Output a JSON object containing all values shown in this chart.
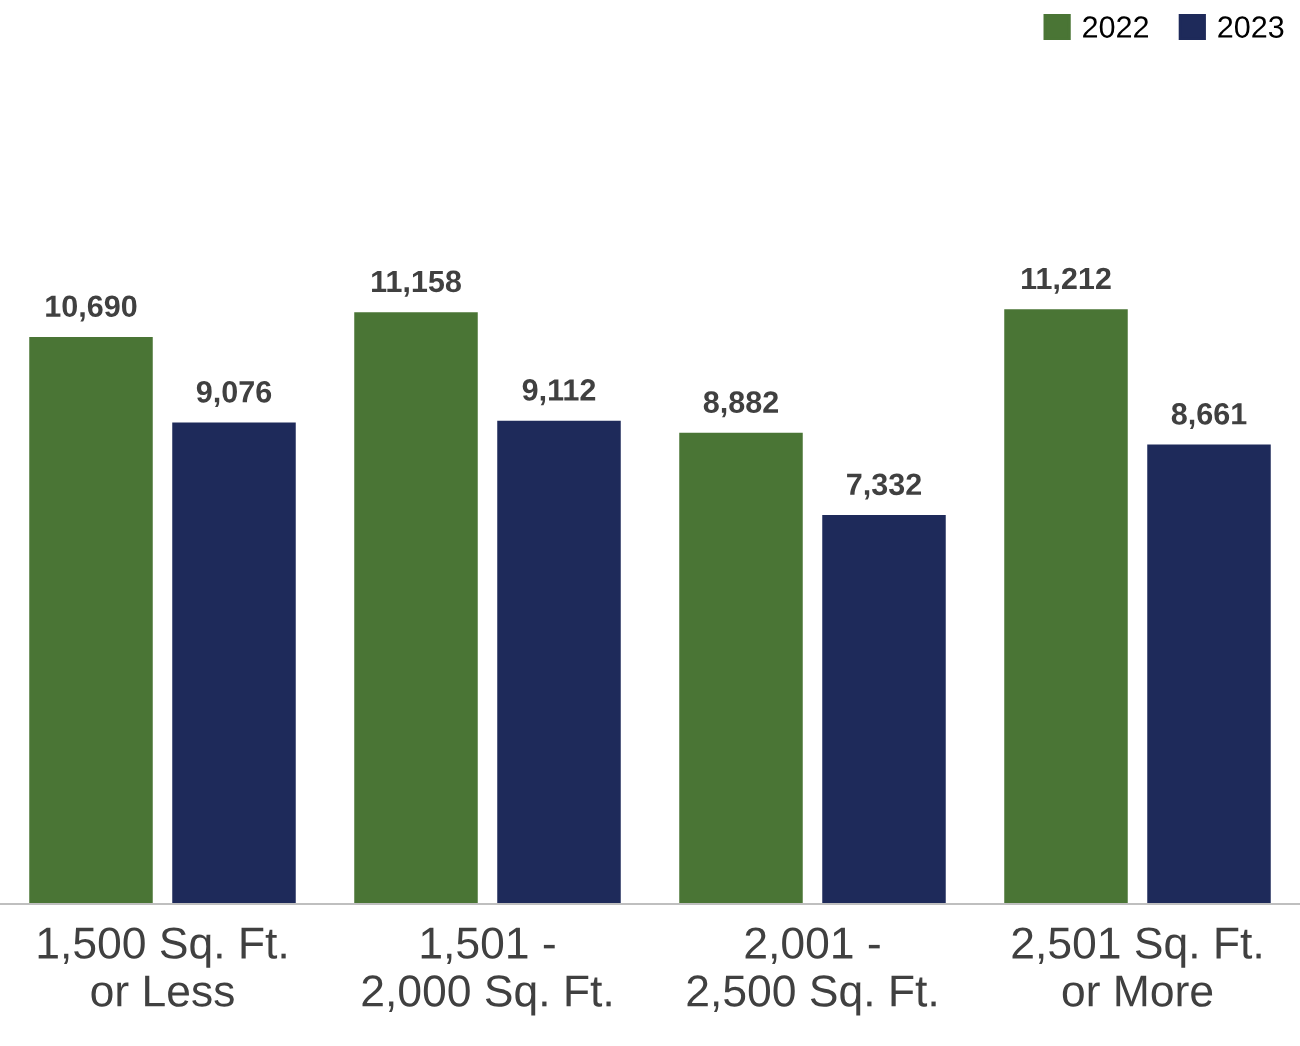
{
  "chart_data": {
    "type": "bar",
    "categories": [
      "1,500 Sq. Ft.\nor Less",
      "1,501 -\n2,000 Sq. Ft.",
      "2,001 -\n2,500 Sq. Ft.",
      "2,501 Sq. Ft.\nor More"
    ],
    "series": [
      {
        "name": "2022",
        "color": "#4a7535",
        "values": [
          10690,
          11158,
          8882,
          11212
        ],
        "value_labels": [
          "10,690",
          "11,158",
          "8,882",
          "11,212"
        ]
      },
      {
        "name": "2023",
        "color": "#1e2a5a",
        "values": [
          9076,
          9112,
          7332,
          8661
        ],
        "value_labels": [
          "9,076",
          "9,112",
          "7,332",
          "8,661"
        ]
      }
    ],
    "legend": "top right",
    "grid": false
  }
}
